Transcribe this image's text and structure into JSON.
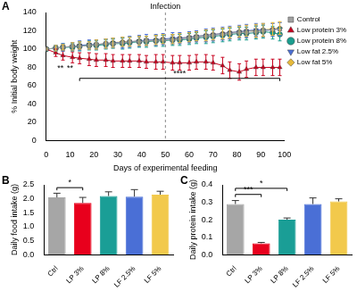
{
  "chart_data": [
    {
      "panel": "A",
      "type": "line",
      "x_label": "Days of experimental feeding",
      "y_label": "% Initial body weight",
      "x": [
        0,
        4,
        7,
        11,
        14,
        18,
        21,
        25,
        28,
        32,
        35,
        39,
        42,
        46,
        49,
        53,
        56,
        60,
        63,
        67,
        70,
        74,
        77,
        81,
        84,
        88,
        91,
        95,
        98
      ],
      "xlim": [
        0,
        100
      ],
      "xticks": [
        0,
        10,
        20,
        30,
        40,
        50,
        60,
        70,
        80,
        90,
        100
      ],
      "ylim": [
        0,
        140
      ],
      "yticks": [
        0,
        20,
        40,
        60,
        80,
        100,
        120,
        140
      ],
      "grid": false,
      "legend": "right",
      "series": [
        {
          "name": "Control",
          "color": "#a0a0a0",
          "marker": "square",
          "values": [
            100,
            101,
            102,
            103,
            103,
            104,
            105,
            106,
            106,
            107,
            108,
            108,
            109,
            109,
            110,
            110,
            111,
            112,
            113,
            114,
            115,
            116,
            117,
            118,
            118,
            119,
            120,
            121,
            122
          ],
          "errors": [
            1,
            3,
            3,
            4,
            4,
            4,
            5,
            5,
            5,
            5,
            5,
            5,
            5,
            5,
            5,
            5,
            5,
            5,
            5,
            6,
            6,
            6,
            6,
            6,
            6,
            7,
            7,
            7,
            7
          ]
        },
        {
          "name": "Low protein 3%",
          "color": "#c8001e",
          "marker": "triangle",
          "values": [
            100,
            96,
            93,
            91,
            90,
            89,
            88,
            88,
            87,
            87,
            87,
            87,
            86,
            86,
            86,
            85,
            85,
            85,
            86,
            86,
            85,
            82,
            77,
            75,
            78,
            80,
            80,
            80,
            80
          ],
          "errors": [
            1,
            4,
            5,
            6,
            6,
            7,
            7,
            7,
            7,
            7,
            7,
            7,
            7,
            8,
            8,
            8,
            8,
            8,
            8,
            8,
            8,
            9,
            9,
            9,
            9,
            9,
            9,
            9,
            9
          ]
        },
        {
          "name": "Low protein 8%",
          "color": "#1b9e8f",
          "marker": "circle",
          "values": [
            100,
            101,
            102,
            102,
            103,
            104,
            104,
            105,
            106,
            106,
            107,
            108,
            108,
            109,
            109,
            110,
            110,
            111,
            112,
            113,
            114,
            115,
            116,
            117,
            117,
            118,
            119,
            118,
            116
          ],
          "errors": [
            1,
            3,
            4,
            4,
            5,
            5,
            5,
            5,
            5,
            6,
            6,
            6,
            6,
            6,
            6,
            6,
            6,
            6,
            6,
            7,
            7,
            7,
            7,
            7,
            7,
            7,
            7,
            7,
            7
          ]
        },
        {
          "name": "Low fat 2.5%",
          "color": "#4a6fd6",
          "marker": "triangle-down",
          "values": [
            100,
            101,
            102,
            103,
            104,
            105,
            105,
            106,
            107,
            107,
            108,
            109,
            110,
            110,
            111,
            112,
            112,
            113,
            114,
            115,
            116,
            117,
            118,
            119,
            120,
            121,
            121,
            121,
            122
          ],
          "errors": [
            1,
            3,
            4,
            4,
            5,
            5,
            5,
            5,
            5,
            6,
            6,
            6,
            6,
            6,
            6,
            6,
            6,
            6,
            6,
            7,
            7,
            7,
            7,
            7,
            7,
            7,
            7,
            7,
            7
          ]
        },
        {
          "name": "Low fat 5%",
          "color": "#e6b93a",
          "marker": "diamond",
          "values": [
            100,
            101,
            102,
            103,
            104,
            104,
            105,
            106,
            107,
            108,
            108,
            109,
            109,
            110,
            111,
            111,
            112,
            113,
            114,
            115,
            116,
            117,
            118,
            119,
            120,
            120,
            121,
            122,
            123
          ],
          "errors": [
            1,
            3,
            3,
            4,
            4,
            4,
            5,
            5,
            5,
            5,
            5,
            5,
            5,
            5,
            5,
            5,
            5,
            5,
            5,
            6,
            6,
            6,
            6,
            6,
            6,
            7,
            7,
            7,
            7
          ]
        }
      ],
      "annotations": [
        {
          "type": "vline",
          "x": 50,
          "text": "Infection"
        },
        {
          "type": "text",
          "x": 6,
          "y": 79,
          "text": "**"
        },
        {
          "type": "text",
          "x": 10,
          "y": 79,
          "text": "**"
        },
        {
          "type": "bracket",
          "x": [
            14,
            98
          ],
          "y": 68,
          "text": "****"
        }
      ]
    },
    {
      "panel": "B",
      "type": "bar",
      "y_label": "Daily food intake (g)",
      "categories": [
        "Ctrl",
        "LP 3%",
        "LP 8%",
        "LF 2.5%",
        "LF 5%"
      ],
      "values": [
        2.05,
        1.85,
        2.1,
        2.08,
        2.15
      ],
      "errors": [
        0.15,
        0.2,
        0.15,
        0.25,
        0.12
      ],
      "colors": [
        "#a6a6a6",
        "#e8001c",
        "#1a9e96",
        "#4a6fd6",
        "#f2c94c"
      ],
      "ylim": [
        0,
        2.5
      ],
      "yticks": [
        {
          "value": 0,
          "label": "0.0"
        },
        0.5,
        {
          "value": 1,
          "label": "1.0"
        },
        1.5,
        {
          "value": 2,
          "label": "2.0"
        },
        2.5
      ],
      "grid": false,
      "annotations": [
        {
          "type": "bracket",
          "from": "Ctrl",
          "to": "LP 3%",
          "y": 2.4,
          "text": "*"
        }
      ]
    },
    {
      "panel": "C",
      "type": "bar",
      "y_label": "Daily protein intake (g)",
      "categories": [
        "Ctrl",
        "LP 3%",
        "LP 8%",
        "LF 2.5%",
        "LF 5%"
      ],
      "values": [
        0.29,
        0.065,
        0.2,
        0.29,
        0.305
      ],
      "errors": [
        0.02,
        0.005,
        0.01,
        0.035,
        0.015
      ],
      "colors": [
        "#a6a6a6",
        "#e8001c",
        "#1a9e96",
        "#4a6fd6",
        "#f2c94c"
      ],
      "ylim": [
        0,
        0.4
      ],
      "yticks": [
        {
          "value": 0,
          "label": "0.0"
        },
        0.1,
        0.2,
        0.3,
        0.4
      ],
      "grid": false,
      "annotations": [
        {
          "type": "bracket",
          "from": "Ctrl",
          "to": "LP 3%",
          "y": 0.345,
          "text": "***"
        },
        {
          "type": "bracket",
          "from": "Ctrl",
          "to": "LP 8%",
          "y": 0.38,
          "text": "*"
        }
      ]
    }
  ]
}
